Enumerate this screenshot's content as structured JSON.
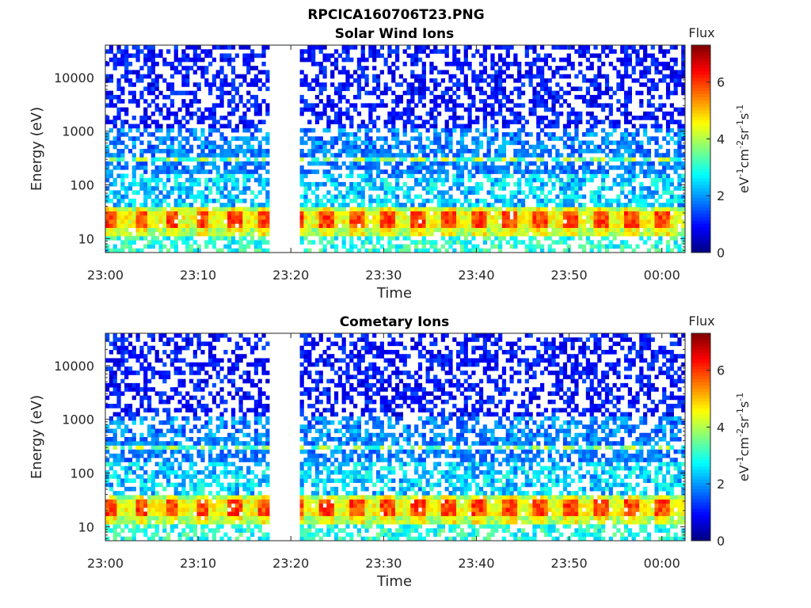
{
  "figure_title": "RPCICA160706T23.PNG",
  "chart_data": [
    {
      "type": "heatmap",
      "title": "Solar Wind Ions",
      "xlabel": "Time",
      "ylabel": "Energy (eV)",
      "x_ticks": [
        "23:00",
        "23:10",
        "23:20",
        "23:30",
        "23:40",
        "23:50",
        "00:00"
      ],
      "x_tick_minutes": [
        0,
        10,
        20,
        30,
        40,
        50,
        60
      ],
      "xlim_minutes": [
        0,
        62.5
      ],
      "y_scale": "log",
      "y_ticks": [
        10,
        100,
        1000,
        10000
      ],
      "y_tick_labels": [
        "10",
        "100",
        "1000",
        "10000"
      ],
      "ylim": [
        5.5,
        40000
      ],
      "data_gap_minutes": [
        17.8,
        20.9
      ],
      "colorbar": {
        "title": "Flux",
        "unit": "eV-1cm-2sr-1s-1",
        "range": [
          0,
          7.3
        ],
        "ticks": [
          0,
          2,
          4,
          6
        ],
        "colormap": "jet"
      }
    },
    {
      "type": "heatmap",
      "title": "Cometary Ions",
      "xlabel": "Time",
      "ylabel": "Energy (eV)",
      "x_ticks": [
        "23:00",
        "23:10",
        "23:20",
        "23:30",
        "23:40",
        "23:50",
        "00:00"
      ],
      "x_tick_minutes": [
        0,
        10,
        20,
        30,
        40,
        50,
        60
      ],
      "xlim_minutes": [
        0,
        62.5
      ],
      "y_scale": "log",
      "y_ticks": [
        10,
        100,
        1000,
        10000
      ],
      "y_tick_labels": [
        "10",
        "100",
        "1000",
        "10000"
      ],
      "ylim": [
        5.5,
        40000
      ],
      "data_gap_minutes": [
        17.8,
        20.9
      ],
      "colorbar": {
        "title": "Flux",
        "unit": "eV-1cm-2sr-1s-1",
        "range": [
          0,
          7.3
        ],
        "ticks": [
          0,
          2,
          4,
          6
        ],
        "colormap": "jet"
      }
    }
  ]
}
